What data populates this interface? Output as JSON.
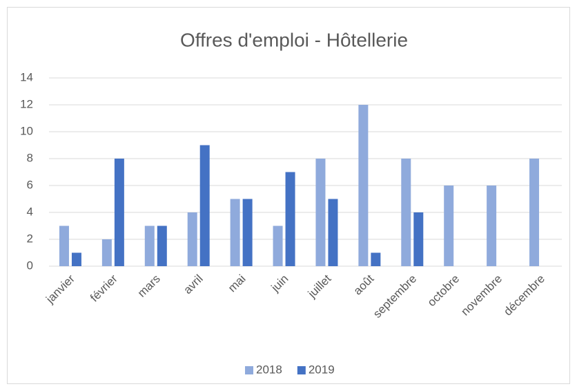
{
  "chart_data": {
    "type": "bar",
    "title": "Offres d'emploi - Hôtellerie",
    "categories": [
      "janvier",
      "février",
      "mars",
      "avril",
      "mai",
      "juin",
      "juillet",
      "août",
      "septembre",
      "octobre",
      "novembre",
      "décembre"
    ],
    "series": [
      {
        "name": "2018",
        "color": "#8faadc",
        "values": [
          3,
          2,
          3,
          4,
          5,
          3,
          8,
          12,
          8,
          6,
          6,
          8
        ]
      },
      {
        "name": "2019",
        "color": "#4472c4",
        "values": [
          1,
          8,
          3,
          9,
          5,
          7,
          5,
          1,
          4,
          null,
          null,
          null
        ]
      }
    ],
    "ylim": [
      0,
      14
    ],
    "yticks": [
      0,
      2,
      4,
      6,
      8,
      10,
      12,
      14
    ],
    "grid": true,
    "legend": "bottom"
  }
}
